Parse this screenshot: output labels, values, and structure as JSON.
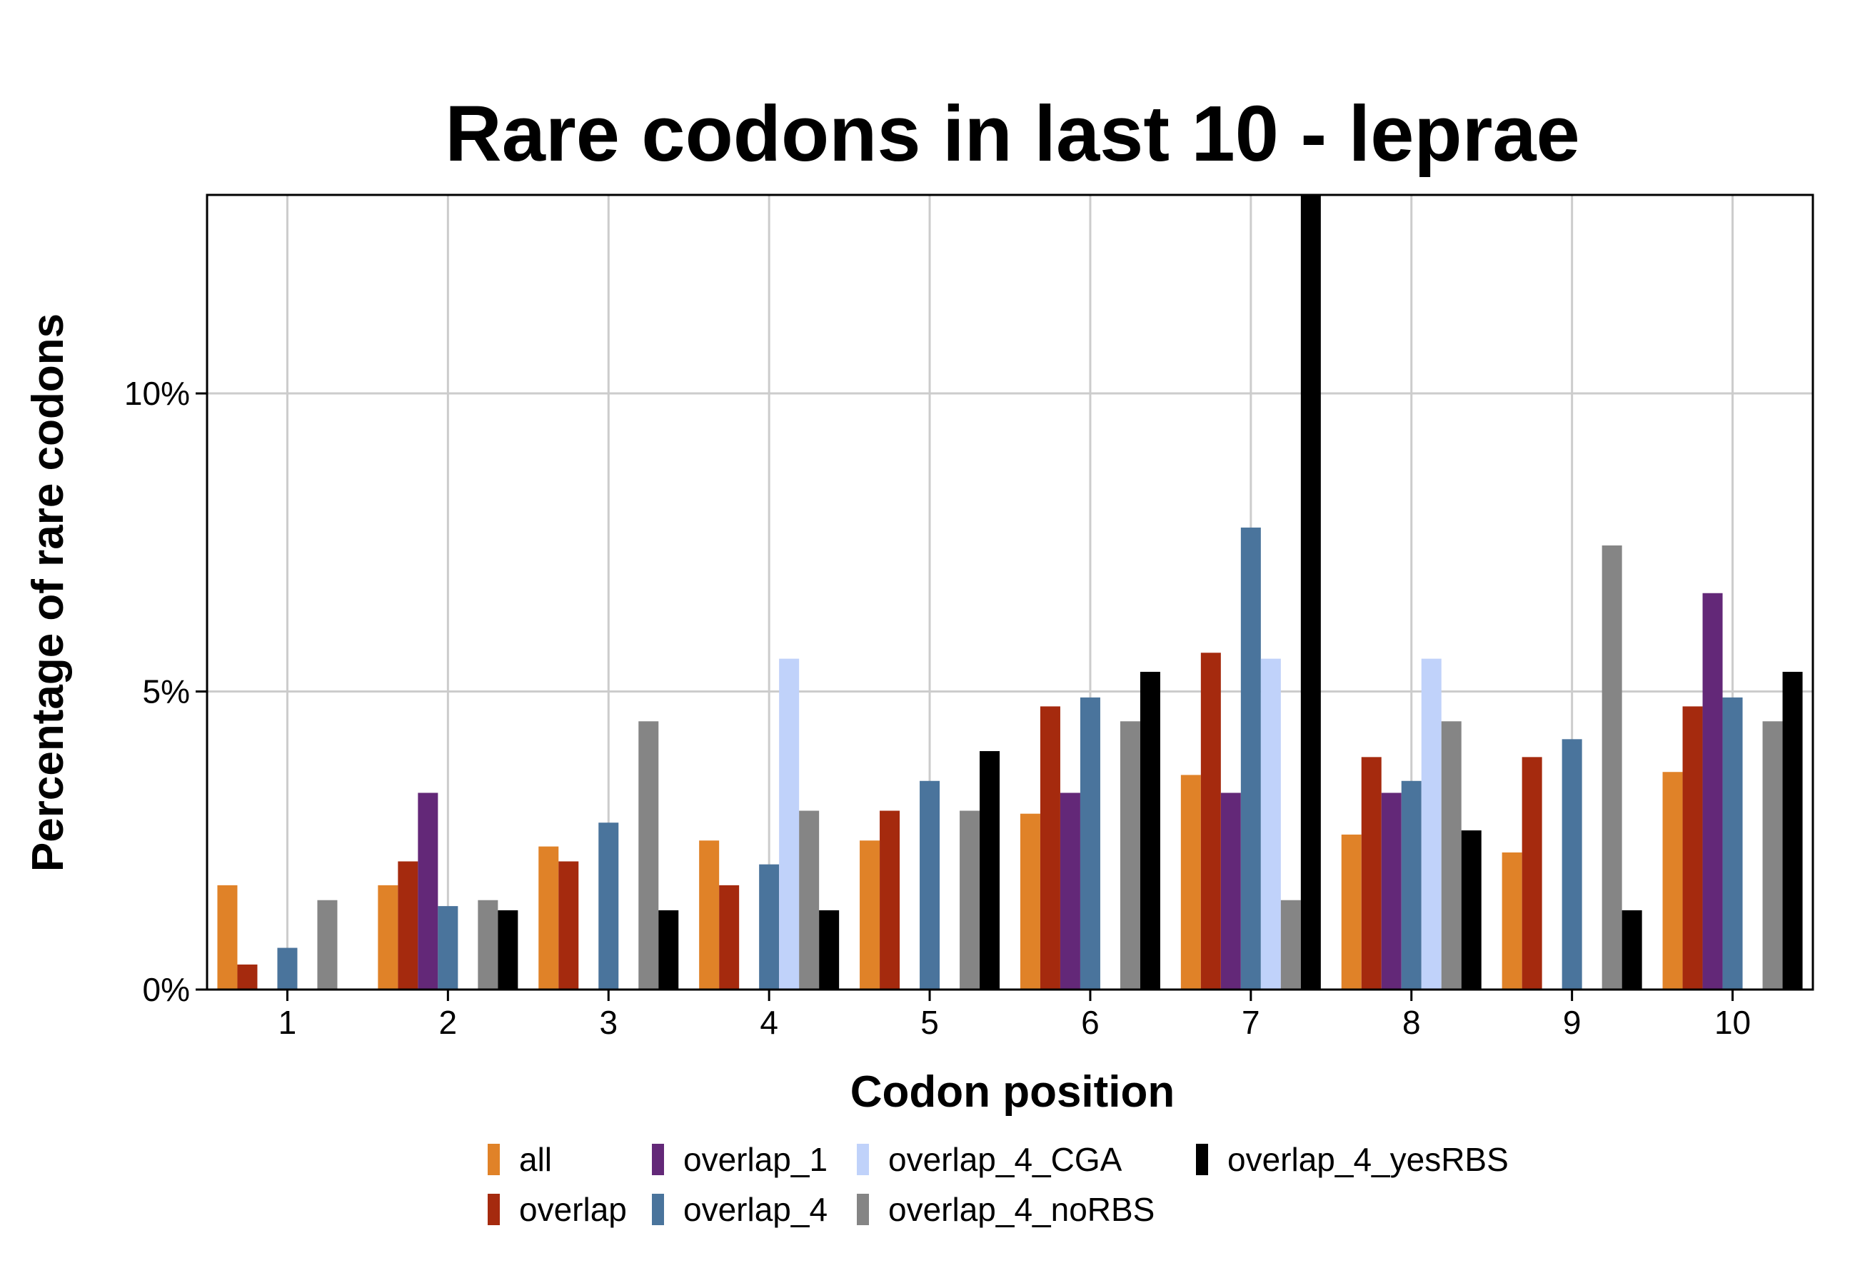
{
  "chart_data": {
    "type": "bar",
    "title": "Rare codons in last 10 - leprae",
    "xlabel": "Codon position",
    "ylabel": "Percentage of rare codons",
    "categories": [
      "1",
      "2",
      "3",
      "4",
      "5",
      "6",
      "7",
      "8",
      "9",
      "10"
    ],
    "ylim": [
      0,
      13.33
    ],
    "yticks": [
      0,
      5,
      10
    ],
    "ytick_labels": [
      "0%",
      "5%",
      "10%"
    ],
    "grid": true,
    "legend_position": "bottom",
    "series": [
      {
        "name": "all",
        "color": "#E08228",
        "values": [
          1.75,
          1.75,
          2.4,
          2.5,
          2.5,
          2.95,
          3.6,
          2.6,
          2.3,
          3.65
        ]
      },
      {
        "name": "overlap",
        "color": "#A52A0E",
        "values": [
          0.42,
          2.15,
          2.15,
          1.75,
          3.0,
          4.75,
          5.65,
          3.9,
          3.9,
          4.75
        ]
      },
      {
        "name": "overlap_1",
        "color": "#632878",
        "values": [
          0,
          3.3,
          0,
          0,
          0,
          3.3,
          3.3,
          3.3,
          0,
          6.65
        ]
      },
      {
        "name": "overlap_4",
        "color": "#4A749C",
        "values": [
          0.7,
          1.4,
          2.8,
          2.1,
          3.5,
          4.9,
          7.75,
          3.5,
          4.2,
          4.9
        ]
      },
      {
        "name": "overlap_4_CGA",
        "color": "#C0D2FA",
        "values": [
          0,
          0,
          0,
          5.55,
          0,
          0,
          5.55,
          5.55,
          0,
          0
        ]
      },
      {
        "name": "overlap_4_noRBS",
        "color": "#858585",
        "values": [
          1.5,
          1.5,
          4.5,
          3.0,
          3.0,
          4.5,
          1.5,
          4.5,
          7.45,
          4.5
        ]
      },
      {
        "name": "overlap_4_yesRBS",
        "color": "#000000",
        "values": [
          0,
          1.33,
          1.33,
          1.33,
          4.0,
          5.33,
          13.33,
          2.67,
          1.33,
          5.33
        ]
      }
    ]
  }
}
